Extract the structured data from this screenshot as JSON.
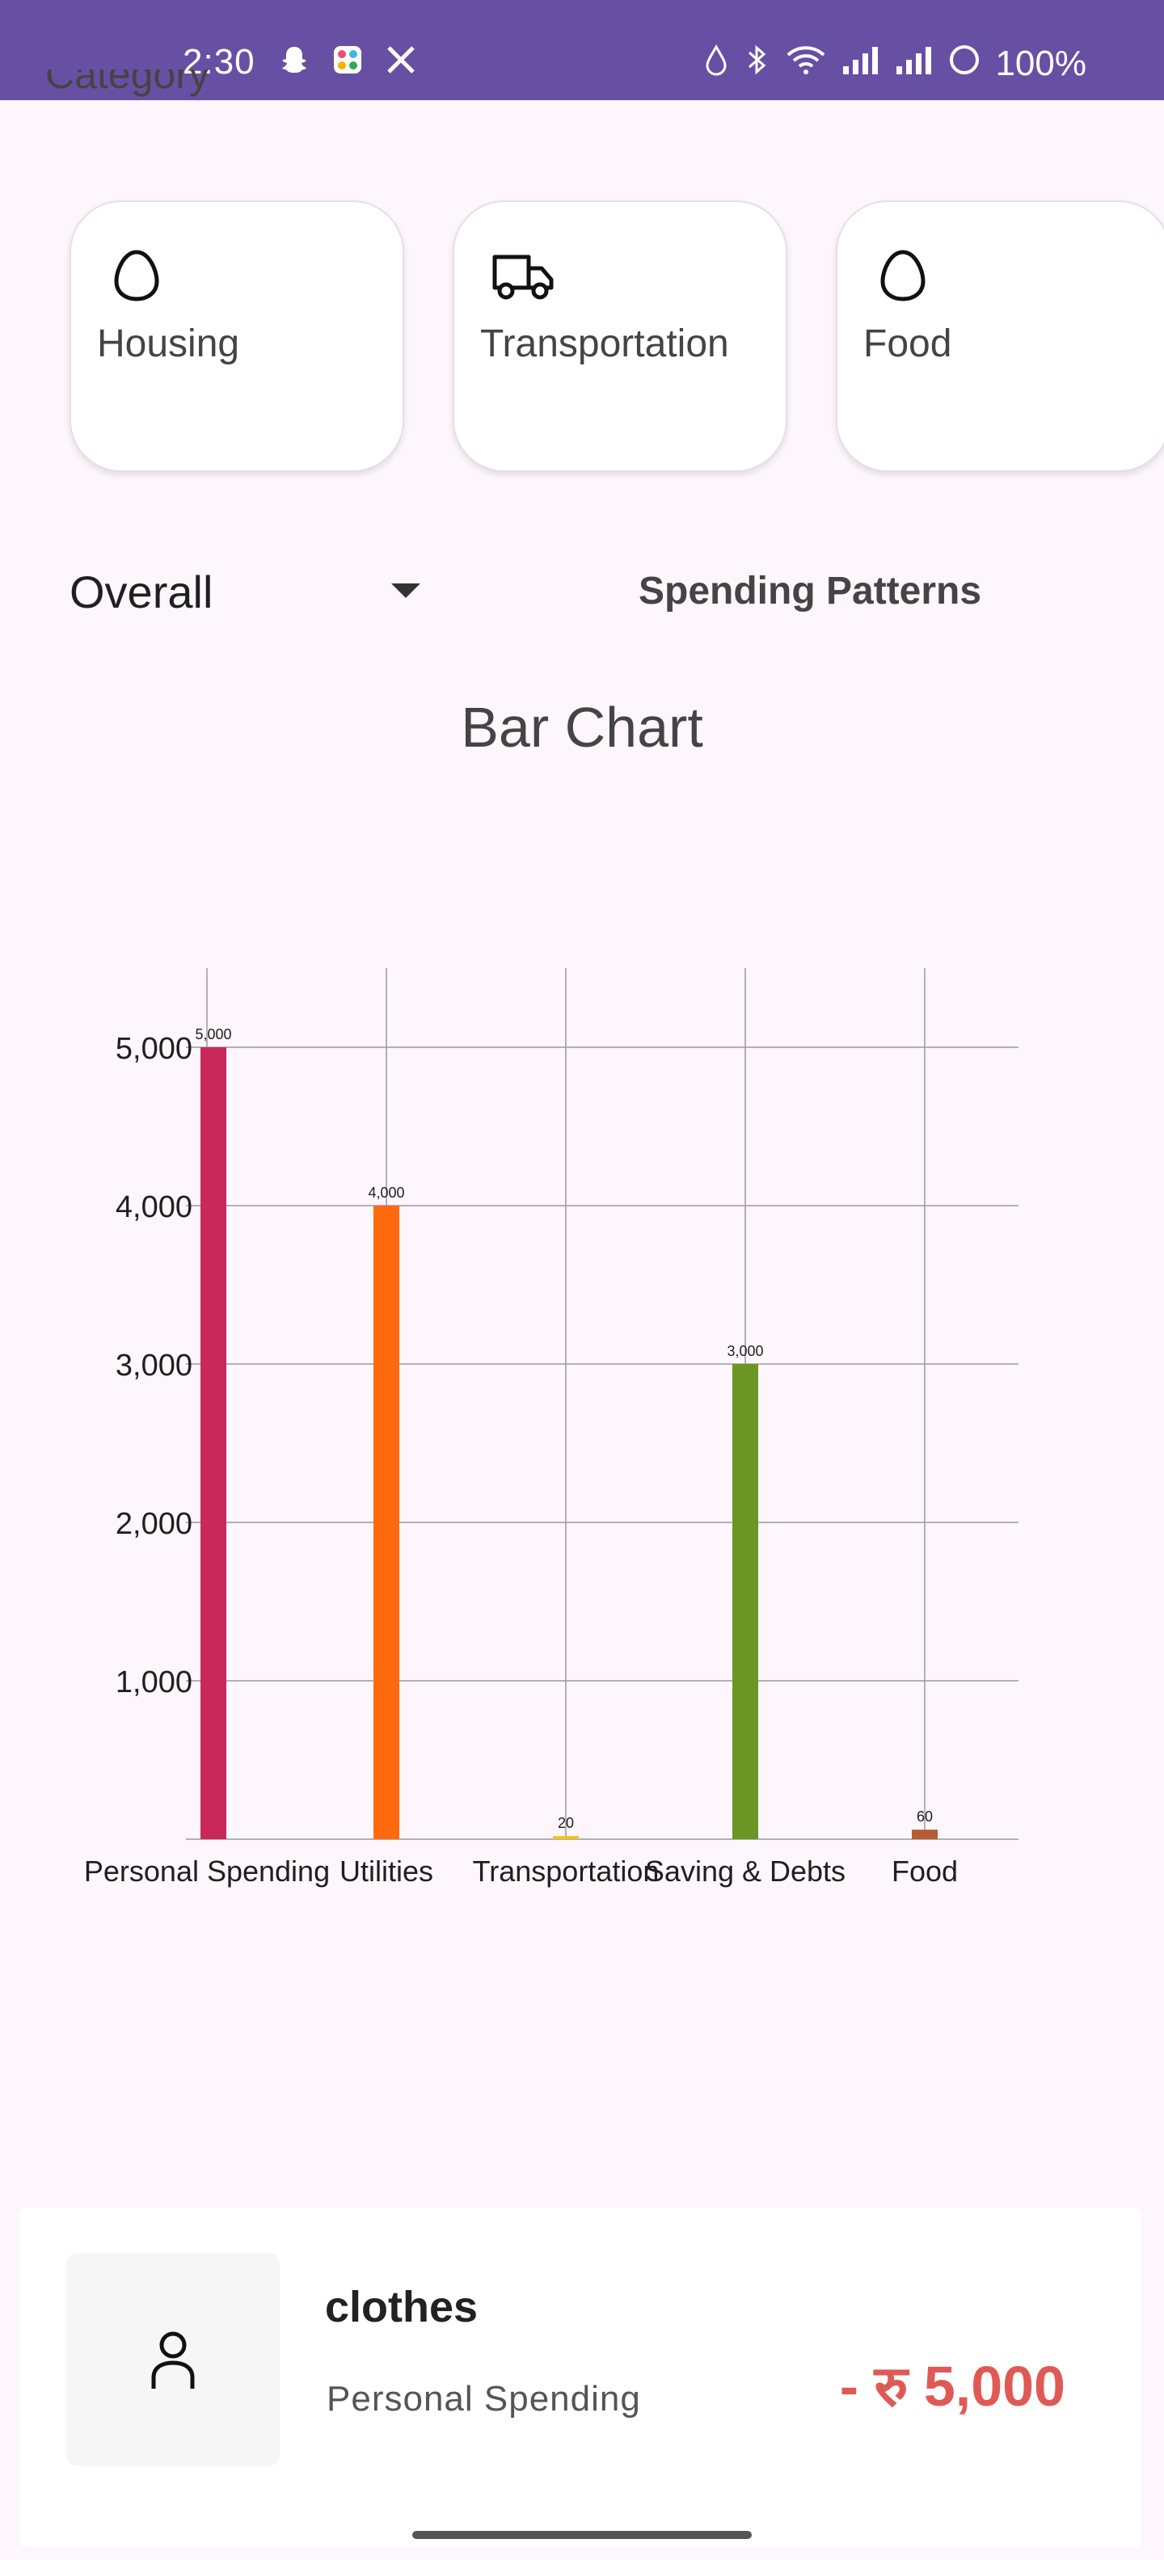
{
  "status_bar": {
    "time": "2:30",
    "battery": "100%",
    "left_icons": [
      "snapchat-icon",
      "app-icon",
      "x-icon"
    ],
    "right_icons": [
      "drop-icon",
      "bluetooth-icon",
      "wifi-icon",
      "signal-icon",
      "signal-icon",
      "battery-icon"
    ]
  },
  "section": {
    "heading": "Category"
  },
  "categories": [
    {
      "label": "Housing",
      "icon": "egg-icon"
    },
    {
      "label": "Transportation",
      "icon": "truck-icon"
    },
    {
      "label": "Food",
      "icon": "egg-icon"
    }
  ],
  "filter": {
    "value": "Overall"
  },
  "patterns_button": {
    "label": "Spending Patterns"
  },
  "chart_title": "Bar Chart",
  "chart_data": {
    "type": "bar",
    "categories": [
      "Personal Spending",
      "Utilities",
      "Transportation",
      "Saving & Debts",
      "Food"
    ],
    "values": [
      5000,
      4000,
      20,
      3000,
      60
    ],
    "value_labels": [
      "5,000",
      "4,000",
      "20",
      "3,000",
      "60"
    ],
    "colors": [
      "#C8285A",
      "#FF6A0E",
      "#F2C318",
      "#6B9624",
      "#B85A34"
    ],
    "y_ticks": [
      1000,
      2000,
      3000,
      4000,
      5000
    ],
    "y_tick_labels": [
      "1,000",
      "2,000",
      "3,000",
      "4,000",
      "5,000"
    ],
    "ylim": [
      0,
      5500
    ],
    "grid": true
  },
  "transaction": {
    "title": "clothes",
    "category": "Personal Spending",
    "amount": "- रु 5,000",
    "icon": "person-icon"
  }
}
